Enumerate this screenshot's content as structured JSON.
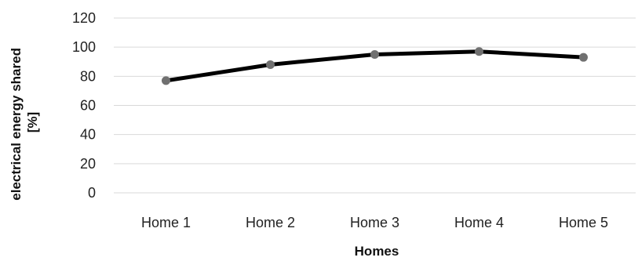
{
  "chart_data": {
    "type": "line",
    "title": "",
    "xlabel": "Homes",
    "ylabel_lines": [
      "electrical energy shared",
      "[%]"
    ],
    "categories": [
      "Home 1",
      "Home 2",
      "Home 3",
      "Home 4",
      "Home 5"
    ],
    "series": [
      {
        "values": [
          77,
          88,
          95,
          97,
          93
        ]
      }
    ],
    "ylim": [
      0,
      120
    ],
    "yticks": [
      0,
      20,
      40,
      60,
      80,
      100,
      120
    ],
    "grid": true,
    "legend": "none",
    "colors": {
      "line": "#000000",
      "marker": "#707070",
      "grid": "#d9d9d9"
    }
  }
}
